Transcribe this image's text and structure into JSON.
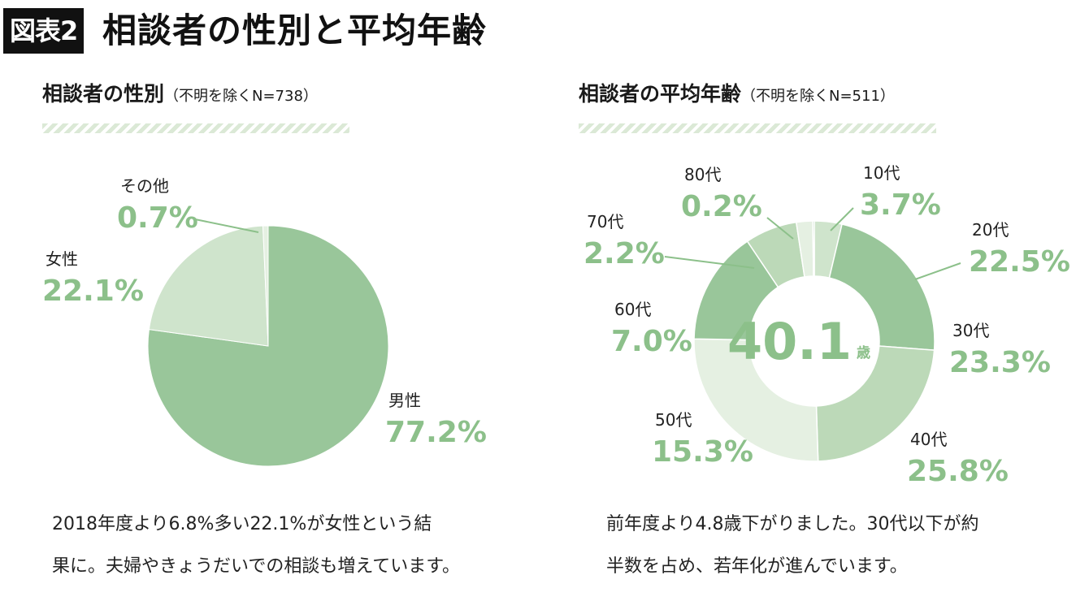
{
  "header": {
    "badge": "図表2",
    "title": "相談者の性別と平均年齢"
  },
  "chart_data": [
    {
      "type": "pie",
      "title": "相談者の性別",
      "note": "（不明を除くN=738）",
      "categories": [
        "男性",
        "女性",
        "その他"
      ],
      "values": [
        77.2,
        22.1,
        0.7
      ],
      "value_labels": [
        "77.2%",
        "22.1%",
        "0.7%"
      ],
      "colors": [
        "#99c69a",
        "#cfe4cc",
        "#e5f0e2"
      ]
    },
    {
      "type": "pie",
      "subtype": "donut",
      "title": "相談者の平均年齢",
      "note": "（不明を除くN=511）",
      "categories": [
        "10代",
        "20代",
        "30代",
        "40代",
        "50代",
        "60代",
        "70代",
        "80代"
      ],
      "values": [
        3.7,
        22.5,
        23.3,
        25.8,
        15.3,
        7.0,
        2.2,
        0.2
      ],
      "value_labels": [
        "3.7%",
        "22.5%",
        "23.3%",
        "25.8%",
        "15.3%",
        "7.0%",
        "2.2%",
        "0.2%"
      ],
      "colors": [
        "#cfe4cc",
        "#99c69a",
        "#bcd9b8",
        "#e5f0e2",
        "#99c69a",
        "#bcd9b8",
        "#e5f0e2",
        "#99c69a"
      ],
      "center_value": "40.1",
      "center_unit": "歳"
    }
  ],
  "captions": {
    "left": [
      "2018年度より6.8%多い22.1%が女性という結",
      "果に。夫婦やきょうだいでの相談も増えています。"
    ],
    "right": [
      "前年度より4.8歳下がりました。30代以下が約",
      "半数を占め、若年化が進んでいます。"
    ]
  },
  "colors": {
    "accent": "#8cc08a",
    "stripe": "#dbe9d6"
  }
}
